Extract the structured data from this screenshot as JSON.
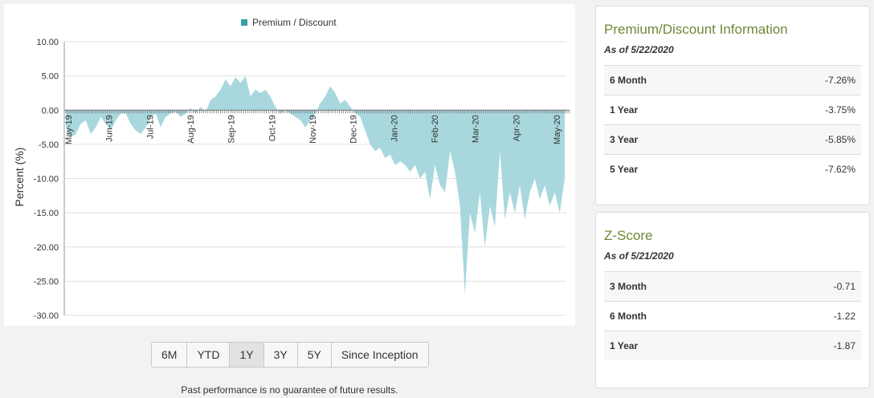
{
  "chart_data": {
    "type": "area",
    "legend": [
      "Premium / Discount"
    ],
    "ylabel": "Percent (%)",
    "xlabel": "",
    "ylim": [
      -30,
      10
    ],
    "y_ticks": [
      "10.00",
      "5.00",
      "0.00",
      "-5.00",
      "-10.00",
      "-15.00",
      "-20.00",
      "-25.00",
      "-30.00"
    ],
    "x_tick_labels": [
      "May-19",
      "Jun-19",
      "Jul-19",
      "Aug-19",
      "Sep-19",
      "Oct-19",
      "Nov-19",
      "Dec-19",
      "Jan-20",
      "Feb-20",
      "Mar-20",
      "Apr-20",
      "May-20"
    ],
    "legend_position": "top-center",
    "grid": true,
    "color": "#a8d8de",
    "series": [
      {
        "name": "Premium / Discount",
        "values": [
          -2.5,
          -4.0,
          -3.5,
          -2.0,
          -1.5,
          -3.5,
          -2.5,
          -1.0,
          -2.0,
          -3.0,
          -1.5,
          -0.5,
          -0.5,
          -2.0,
          -3.0,
          -3.5,
          -2.5,
          -1.0,
          -0.5,
          -2.5,
          -1.0,
          -0.5,
          -0.2,
          -1.0,
          -0.5,
          0.3,
          -0.5,
          0.5,
          -0.3,
          1.5,
          2.0,
          3.0,
          4.5,
          3.5,
          4.8,
          4.0,
          5.0,
          2.0,
          3.0,
          2.5,
          3.0,
          2.0,
          0.5,
          -0.5,
          0.0,
          -0.5,
          -1.0,
          -1.5,
          -2.5,
          -1.5,
          -0.5,
          1.0,
          2.0,
          3.5,
          2.5,
          1.0,
          1.5,
          0.5,
          -0.5,
          -1.0,
          -3.0,
          -5.0,
          -6.0,
          -5.5,
          -7.0,
          -6.5,
          -8.0,
          -7.5,
          -8.0,
          -9.0,
          -8.0,
          -10.0,
          -9.0,
          -13.0,
          -8.0,
          -11.0,
          -12.0,
          -6.0,
          -9.0,
          -14.0,
          -27.0,
          -15.0,
          -18.0,
          -12.0,
          -20.0,
          -14.0,
          -17.0,
          -6.0,
          -16.0,
          -12.0,
          -15.0,
          -11.0,
          -16.0,
          -12.0,
          -10.0,
          -13.0,
          -11.0,
          -14.0,
          -12.0,
          -15.0,
          -10.0
        ]
      }
    ]
  },
  "range_buttons": [
    "6M",
    "YTD",
    "1Y",
    "3Y",
    "5Y",
    "Since Inception"
  ],
  "active_range": "1Y",
  "disclaimer": "Past performance is no guarantee of future results.",
  "premium_card": {
    "title": "Premium/Discount Information",
    "as_of": "As of 5/22/2020",
    "rows": [
      {
        "label": "6 Month",
        "value": "-7.26%"
      },
      {
        "label": "1 Year",
        "value": "-3.75%"
      },
      {
        "label": "3 Year",
        "value": "-5.85%"
      },
      {
        "label": "5 Year",
        "value": "-7.62%"
      }
    ]
  },
  "zscore_card": {
    "title": "Z-Score",
    "as_of": "As of 5/21/2020",
    "rows": [
      {
        "label": "3 Month",
        "value": "-0.71"
      },
      {
        "label": "6 Month",
        "value": "-1.22"
      },
      {
        "label": "1 Year",
        "value": "-1.87"
      }
    ]
  }
}
